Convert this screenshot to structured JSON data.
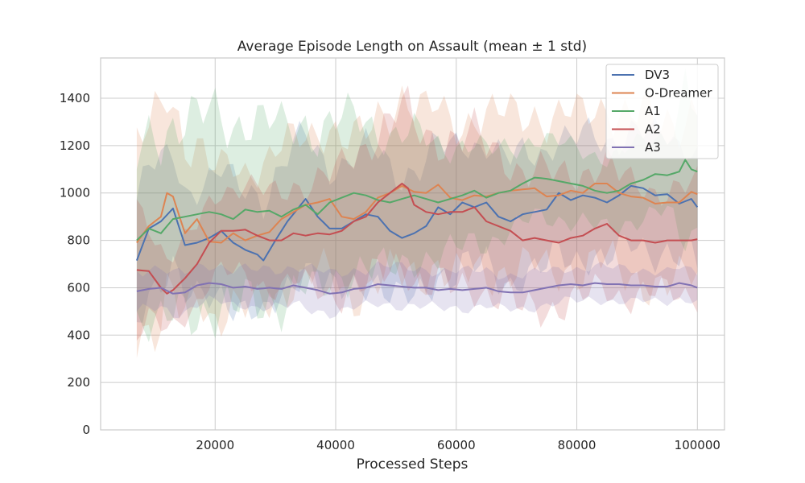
{
  "chart_data": {
    "type": "line",
    "title": "Average Episode Length on Assault (mean ± 1 std)",
    "xlabel": "Processed Steps",
    "ylabel": "",
    "xlim": [
      1000,
      104500
    ],
    "ylim": [
      0,
      1570
    ],
    "xticks": [
      20000,
      40000,
      60000,
      80000,
      100000
    ],
    "xtick_labels": [
      "20000",
      "40000",
      "60000",
      "80000",
      "100000"
    ],
    "yticks": [
      0,
      200,
      400,
      600,
      800,
      1000,
      1200,
      1400
    ],
    "ytick_labels": [
      "0",
      "200",
      "400",
      "600",
      "800",
      "1000",
      "1200",
      "1400"
    ],
    "grid": true,
    "legend_position": "top-right",
    "x_start": 7000,
    "x_end": 100000,
    "x_step": 1000,
    "shaded_band": "mean ± 1 std",
    "series": [
      {
        "name": "DV3",
        "color": "#4c72b0",
        "anchors": [
          [
            7000,
            715
          ],
          [
            9000,
            850
          ],
          [
            11000,
            880
          ],
          [
            13000,
            935
          ],
          [
            15000,
            780
          ],
          [
            17000,
            790
          ],
          [
            19000,
            810
          ],
          [
            21000,
            840
          ],
          [
            23000,
            790
          ],
          [
            25000,
            760
          ],
          [
            27000,
            740
          ],
          [
            28000,
            715
          ],
          [
            30000,
            800
          ],
          [
            32000,
            880
          ],
          [
            35000,
            975
          ],
          [
            37000,
            900
          ],
          [
            39000,
            850
          ],
          [
            41000,
            850
          ],
          [
            43000,
            880
          ],
          [
            45000,
            910
          ],
          [
            47000,
            900
          ],
          [
            49000,
            840
          ],
          [
            51000,
            810
          ],
          [
            53000,
            830
          ],
          [
            55000,
            860
          ],
          [
            57000,
            940
          ],
          [
            59000,
            910
          ],
          [
            61000,
            960
          ],
          [
            63000,
            940
          ],
          [
            65000,
            960
          ],
          [
            67000,
            900
          ],
          [
            69000,
            880
          ],
          [
            71000,
            910
          ],
          [
            73000,
            920
          ],
          [
            75000,
            930
          ],
          [
            77000,
            1000
          ],
          [
            79000,
            970
          ],
          [
            81000,
            990
          ],
          [
            83000,
            980
          ],
          [
            85000,
            960
          ],
          [
            87000,
            990
          ],
          [
            89000,
            1030
          ],
          [
            91000,
            1020
          ],
          [
            93000,
            990
          ],
          [
            95000,
            995
          ],
          [
            97000,
            955
          ],
          [
            99000,
            975
          ],
          [
            100000,
            940
          ]
        ],
        "std_anchors": [
          [
            7000,
            260
          ],
          [
            15000,
            230
          ],
          [
            25000,
            260
          ],
          [
            35000,
            270
          ],
          [
            45000,
            270
          ],
          [
            55000,
            270
          ],
          [
            65000,
            260
          ],
          [
            75000,
            250
          ],
          [
            85000,
            250
          ],
          [
            95000,
            240
          ],
          [
            100000,
            240
          ]
        ]
      },
      {
        "name": "O-Dreamer",
        "color": "#dd8452",
        "anchors": [
          [
            7000,
            790
          ],
          [
            9000,
            860
          ],
          [
            11000,
            900
          ],
          [
            12000,
            1000
          ],
          [
            13000,
            985
          ],
          [
            15000,
            830
          ],
          [
            17000,
            890
          ],
          [
            19000,
            795
          ],
          [
            21000,
            790
          ],
          [
            23000,
            830
          ],
          [
            25000,
            800
          ],
          [
            27000,
            820
          ],
          [
            29000,
            835
          ],
          [
            31000,
            890
          ],
          [
            33000,
            920
          ],
          [
            35000,
            950
          ],
          [
            37000,
            960
          ],
          [
            39000,
            975
          ],
          [
            41000,
            900
          ],
          [
            43000,
            890
          ],
          [
            45000,
            920
          ],
          [
            47000,
            980
          ],
          [
            49000,
            1000
          ],
          [
            51000,
            1030
          ],
          [
            53000,
            1005
          ],
          [
            55000,
            1000
          ],
          [
            57000,
            1035
          ],
          [
            59000,
            980
          ],
          [
            61000,
            970
          ],
          [
            63000,
            990
          ],
          [
            65000,
            985
          ],
          [
            67000,
            1000
          ],
          [
            69000,
            1010
          ],
          [
            71000,
            1015
          ],
          [
            73000,
            1020
          ],
          [
            75000,
            985
          ],
          [
            77000,
            990
          ],
          [
            79000,
            1010
          ],
          [
            81000,
            1000
          ],
          [
            83000,
            1040
          ],
          [
            85000,
            1040
          ],
          [
            87000,
            1000
          ],
          [
            89000,
            985
          ],
          [
            91000,
            980
          ],
          [
            93000,
            955
          ],
          [
            95000,
            960
          ],
          [
            97000,
            960
          ],
          [
            99000,
            1005
          ],
          [
            100000,
            995
          ]
        ],
        "std_anchors": [
          [
            7000,
            380
          ],
          [
            12000,
            470
          ],
          [
            17000,
            310
          ],
          [
            25000,
            300
          ],
          [
            35000,
            300
          ],
          [
            45000,
            330
          ],
          [
            51000,
            380
          ],
          [
            55000,
            330
          ],
          [
            65000,
            330
          ],
          [
            75000,
            320
          ],
          [
            85000,
            330
          ],
          [
            95000,
            350
          ],
          [
            100000,
            340
          ]
        ]
      },
      {
        "name": "A1",
        "color": "#55a868",
        "anchors": [
          [
            7000,
            800
          ],
          [
            9000,
            850
          ],
          [
            11000,
            830
          ],
          [
            13000,
            890
          ],
          [
            15000,
            900
          ],
          [
            17000,
            910
          ],
          [
            19000,
            920
          ],
          [
            21000,
            910
          ],
          [
            23000,
            890
          ],
          [
            25000,
            930
          ],
          [
            27000,
            920
          ],
          [
            29000,
            925
          ],
          [
            31000,
            900
          ],
          [
            33000,
            930
          ],
          [
            35000,
            950
          ],
          [
            37000,
            910
          ],
          [
            39000,
            960
          ],
          [
            41000,
            980
          ],
          [
            43000,
            1000
          ],
          [
            45000,
            990
          ],
          [
            47000,
            970
          ],
          [
            49000,
            960
          ],
          [
            51000,
            975
          ],
          [
            53000,
            990
          ],
          [
            55000,
            975
          ],
          [
            57000,
            960
          ],
          [
            59000,
            975
          ],
          [
            61000,
            990
          ],
          [
            63000,
            1010
          ],
          [
            65000,
            980
          ],
          [
            67000,
            1000
          ],
          [
            69000,
            1010
          ],
          [
            71000,
            1040
          ],
          [
            73000,
            1065
          ],
          [
            75000,
            1060
          ],
          [
            77000,
            1050
          ],
          [
            79000,
            1040
          ],
          [
            81000,
            1030
          ],
          [
            83000,
            1010
          ],
          [
            85000,
            1000
          ],
          [
            87000,
            1010
          ],
          [
            89000,
            1040
          ],
          [
            91000,
            1055
          ],
          [
            93000,
            1080
          ],
          [
            95000,
            1075
          ],
          [
            97000,
            1090
          ],
          [
            98000,
            1140
          ],
          [
            99000,
            1100
          ],
          [
            100000,
            1090
          ]
        ],
        "std_anchors": [
          [
            7000,
            330
          ],
          [
            10000,
            420
          ],
          [
            15000,
            400
          ],
          [
            20000,
            410
          ],
          [
            25000,
            390
          ],
          [
            35000,
            350
          ],
          [
            45000,
            310
          ],
          [
            55000,
            250
          ],
          [
            65000,
            190
          ],
          [
            75000,
            160
          ],
          [
            85000,
            150
          ],
          [
            95000,
            160
          ],
          [
            98000,
            330
          ],
          [
            100000,
            240
          ]
        ]
      },
      {
        "name": "A2",
        "color": "#c44e52",
        "anchors": [
          [
            7000,
            675
          ],
          [
            9000,
            670
          ],
          [
            11000,
            600
          ],
          [
            12000,
            575
          ],
          [
            13000,
            590
          ],
          [
            15000,
            640
          ],
          [
            17000,
            700
          ],
          [
            19000,
            790
          ],
          [
            21000,
            840
          ],
          [
            23000,
            840
          ],
          [
            25000,
            845
          ],
          [
            27000,
            820
          ],
          [
            29000,
            800
          ],
          [
            31000,
            800
          ],
          [
            33000,
            830
          ],
          [
            35000,
            820
          ],
          [
            37000,
            830
          ],
          [
            39000,
            825
          ],
          [
            41000,
            840
          ],
          [
            43000,
            880
          ],
          [
            45000,
            900
          ],
          [
            47000,
            960
          ],
          [
            49000,
            1000
          ],
          [
            51000,
            1040
          ],
          [
            52000,
            1020
          ],
          [
            53000,
            950
          ],
          [
            55000,
            920
          ],
          [
            57000,
            910
          ],
          [
            59000,
            920
          ],
          [
            61000,
            920
          ],
          [
            63000,
            940
          ],
          [
            65000,
            880
          ],
          [
            67000,
            860
          ],
          [
            69000,
            840
          ],
          [
            71000,
            800
          ],
          [
            73000,
            810
          ],
          [
            75000,
            800
          ],
          [
            77000,
            790
          ],
          [
            79000,
            810
          ],
          [
            81000,
            820
          ],
          [
            83000,
            850
          ],
          [
            85000,
            870
          ],
          [
            87000,
            820
          ],
          [
            89000,
            800
          ],
          [
            91000,
            800
          ],
          [
            93000,
            790
          ],
          [
            95000,
            800
          ],
          [
            97000,
            800
          ],
          [
            99000,
            800
          ],
          [
            100000,
            805
          ]
        ],
        "std_anchors": [
          [
            7000,
            260
          ],
          [
            12000,
            150
          ],
          [
            17000,
            160
          ],
          [
            25000,
            190
          ],
          [
            35000,
            210
          ],
          [
            45000,
            300
          ],
          [
            51000,
            320
          ],
          [
            55000,
            320
          ],
          [
            65000,
            310
          ],
          [
            75000,
            280
          ],
          [
            85000,
            260
          ],
          [
            95000,
            210
          ],
          [
            100000,
            230
          ]
        ]
      },
      {
        "name": "A3",
        "color": "#8172b3",
        "anchors": [
          [
            7000,
            585
          ],
          [
            9000,
            595
          ],
          [
            11000,
            600
          ],
          [
            13000,
            575
          ],
          [
            15000,
            580
          ],
          [
            17000,
            610
          ],
          [
            19000,
            620
          ],
          [
            21000,
            615
          ],
          [
            23000,
            600
          ],
          [
            25000,
            605
          ],
          [
            27000,
            595
          ],
          [
            29000,
            600
          ],
          [
            31000,
            595
          ],
          [
            33000,
            610
          ],
          [
            35000,
            600
          ],
          [
            37000,
            590
          ],
          [
            39000,
            575
          ],
          [
            41000,
            580
          ],
          [
            43000,
            595
          ],
          [
            45000,
            600
          ],
          [
            47000,
            615
          ],
          [
            49000,
            610
          ],
          [
            51000,
            605
          ],
          [
            53000,
            600
          ],
          [
            55000,
            600
          ],
          [
            57000,
            590
          ],
          [
            59000,
            595
          ],
          [
            61000,
            590
          ],
          [
            63000,
            595
          ],
          [
            65000,
            600
          ],
          [
            67000,
            585
          ],
          [
            69000,
            580
          ],
          [
            71000,
            580
          ],
          [
            73000,
            590
          ],
          [
            75000,
            600
          ],
          [
            77000,
            610
          ],
          [
            79000,
            615
          ],
          [
            81000,
            610
          ],
          [
            83000,
            620
          ],
          [
            85000,
            615
          ],
          [
            87000,
            615
          ],
          [
            89000,
            610
          ],
          [
            91000,
            610
          ],
          [
            93000,
            605
          ],
          [
            95000,
            605
          ],
          [
            97000,
            620
          ],
          [
            99000,
            610
          ],
          [
            100000,
            600
          ]
        ],
        "std_anchors": [
          [
            7000,
            90
          ],
          [
            15000,
            80
          ],
          [
            25000,
            75
          ],
          [
            35000,
            85
          ],
          [
            45000,
            80
          ],
          [
            55000,
            80
          ],
          [
            65000,
            75
          ],
          [
            75000,
            70
          ],
          [
            85000,
            70
          ],
          [
            95000,
            65
          ],
          [
            100000,
            60
          ]
        ]
      }
    ]
  }
}
